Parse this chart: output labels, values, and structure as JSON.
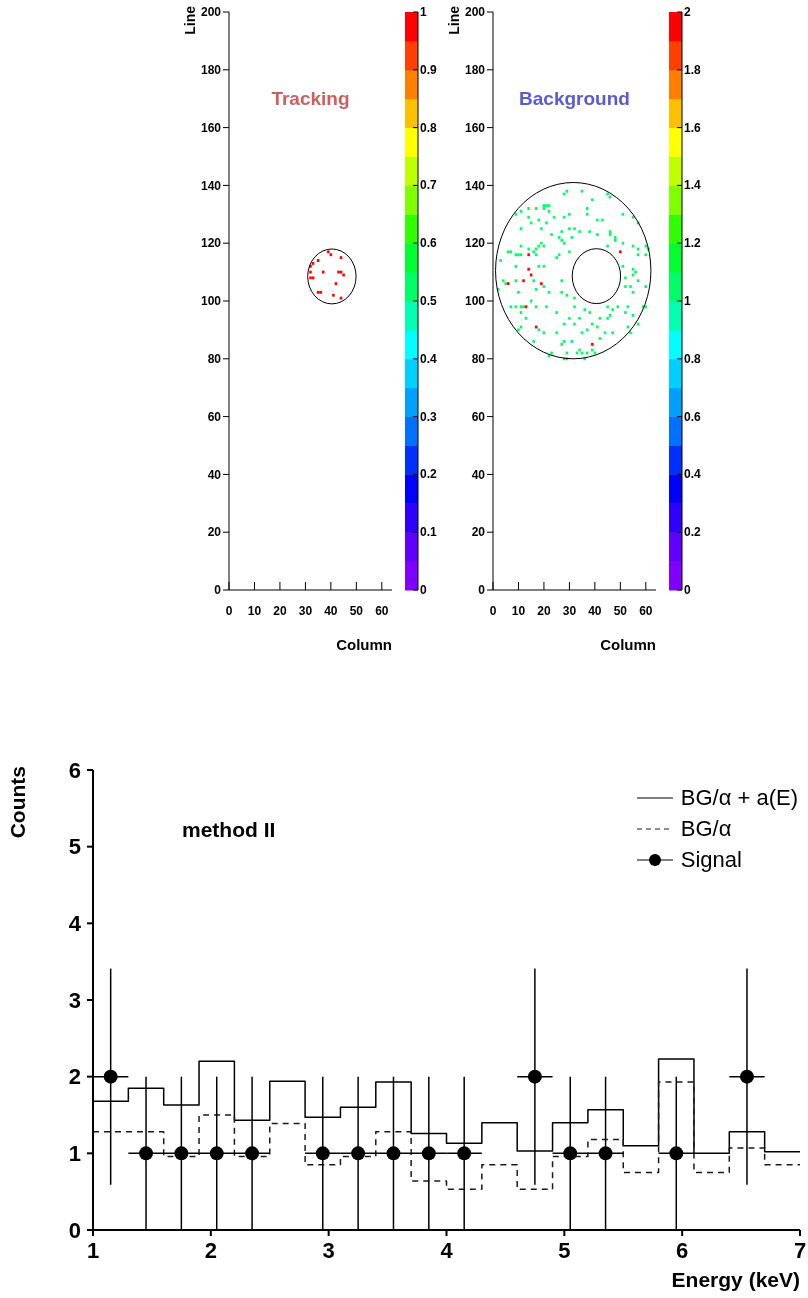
{
  "chart_data": [
    {
      "type": "scatter",
      "title": "Tracking",
      "xlabel": "Column",
      "ylabel": "Line",
      "marker": "square",
      "xlim": [
        0,
        64
      ],
      "xticks": [
        0,
        10,
        20,
        30,
        40,
        50,
        60
      ],
      "ylim": [
        0,
        200
      ],
      "yticks": [
        0,
        20,
        40,
        60,
        80,
        100,
        120,
        140,
        160,
        180,
        200
      ],
      "clim": [
        0,
        1
      ],
      "cticks": [
        0,
        0.1,
        0.2,
        0.3,
        0.4,
        0.5,
        0.6,
        0.7,
        0.8,
        0.9,
        1
      ],
      "x": [
        39,
        40,
        44,
        35,
        33,
        32,
        37,
        43,
        44,
        45,
        32,
        33,
        32,
        42,
        36,
        35,
        41,
        44
      ],
      "values": [
        117,
        116,
        115,
        114,
        113,
        112,
        110,
        110,
        110,
        109,
        110,
        108,
        108,
        106,
        103,
        103,
        102,
        101
      ],
      "cvalues": [
        1,
        1,
        1,
        1,
        1,
        1,
        1,
        1,
        1,
        1,
        1,
        1,
        1,
        1,
        1,
        1,
        1,
        1
      ]
    },
    {
      "type": "scatter",
      "title": "Background",
      "xlabel": "Column",
      "ylabel": "Line",
      "marker": "square",
      "xlim": [
        0,
        64
      ],
      "xticks": [
        0,
        10,
        20,
        30,
        40,
        50,
        60
      ],
      "ylim": [
        0,
        200
      ],
      "yticks": [
        0,
        20,
        40,
        60,
        80,
        100,
        120,
        140,
        160,
        180,
        200
      ],
      "clim": [
        0,
        2
      ],
      "cticks": [
        0,
        0.2,
        0.4,
        0.6,
        0.8,
        1,
        1.2,
        1.4,
        1.6,
        1.8,
        2
      ],
      "x": [
        29,
        35,
        45,
        46,
        39,
        28,
        20,
        21,
        22,
        11,
        9,
        14,
        17,
        20,
        22,
        30,
        37,
        37,
        41,
        43,
        51,
        55,
        57,
        14,
        15,
        18,
        21,
        24,
        28,
        11,
        19,
        23,
        27,
        30,
        32,
        34,
        38,
        46,
        46,
        48,
        48,
        26,
        27,
        28,
        31,
        41,
        51,
        55,
        60,
        57,
        61,
        57,
        60,
        19,
        18,
        20,
        17,
        16,
        14,
        11,
        6,
        7,
        9,
        10,
        11,
        17,
        30,
        25,
        26,
        45,
        3,
        9,
        18,
        20,
        51,
        55,
        56,
        55,
        52,
        57,
        60,
        4,
        5,
        2,
        9,
        16,
        17,
        20,
        27,
        10,
        15,
        22,
        27,
        29,
        32,
        52,
        54,
        55,
        7,
        9,
        11,
        12,
        17,
        21,
        25,
        32,
        36,
        45,
        47,
        49,
        53,
        52,
        55,
        57,
        59,
        60,
        11,
        13,
        38,
        30,
        34,
        28,
        32,
        39,
        41,
        42,
        45,
        46,
        11,
        10,
        18,
        20,
        25,
        35,
        37,
        42,
        44,
        47,
        53,
        54,
        16,
        27,
        31,
        28,
        29,
        23,
        22,
        33,
        34,
        35,
        37,
        39,
        40,
        28,
        29,
        36,
        14,
        50,
        14,
        15,
        12,
        6,
        19,
        13,
        17,
        39
      ],
      "values": [
        138,
        138,
        137,
        136,
        135,
        137,
        133,
        133,
        133,
        131,
        130,
        132,
        132,
        132,
        131,
        130,
        132,
        130,
        128,
        128,
        130,
        129,
        127,
        129,
        127,
        128,
        127,
        129,
        129,
        125,
        125,
        123,
        124,
        125,
        125,
        124,
        124,
        124,
        123,
        122,
        121,
        122,
        121,
        120,
        122,
        123,
        120,
        119,
        119,
        118,
        118,
        116,
        116,
        120,
        119,
        119,
        118,
        117,
        118,
        119,
        117,
        117,
        116,
        116,
        116,
        116,
        117,
        115,
        116,
        119,
        114,
        112,
        112,
        112,
        112,
        111,
        110,
        109,
        108,
        107,
        105,
        107,
        106,
        104,
        107,
        107,
        104,
        105,
        107,
        103,
        100,
        103,
        103,
        102,
        101,
        105,
        105,
        103,
        98,
        98,
        98,
        98,
        98,
        98,
        96,
        98,
        97,
        98,
        97,
        98,
        98,
        96,
        95,
        92,
        98,
        98,
        96,
        94,
        96,
        94,
        94,
        92,
        92,
        92,
        91,
        94,
        94,
        95,
        91,
        90,
        90,
        89,
        89,
        89,
        90,
        87,
        89,
        89,
        91,
        89,
        86,
        85,
        86,
        86,
        82,
        82,
        81,
        82,
        83,
        82,
        82,
        83,
        82,
        80,
        80,
        80,
        116,
        117,
        111,
        109,
        107,
        106,
        106,
        98,
        91,
        85
      ],
      "cvalues": [
        1,
        1,
        1,
        1,
        1,
        1,
        1,
        1,
        1,
        1,
        1,
        1,
        1,
        1,
        1,
        1,
        1,
        1,
        1,
        1,
        1,
        1,
        1,
        1,
        1,
        1,
        1,
        1,
        1,
        1,
        1,
        1,
        1,
        1,
        1,
        1,
        1,
        1,
        1,
        1,
        1,
        1,
        1,
        1,
        1,
        1,
        1,
        1,
        1,
        1,
        1,
        1,
        1,
        1,
        1,
        1,
        1,
        1,
        1,
        1,
        1,
        1,
        1,
        1,
        1,
        1,
        1,
        1,
        1,
        1,
        1,
        1,
        1,
        1,
        1,
        1,
        1,
        1,
        1,
        1,
        1,
        1,
        1,
        1,
        1,
        1,
        1,
        1,
        1,
        1,
        1,
        1,
        1,
        1,
        1,
        1,
        1,
        1,
        1,
        1,
        1,
        1,
        1,
        1,
        1,
        1,
        1,
        1,
        1,
        1,
        1,
        1,
        1,
        1,
        1,
        1,
        1,
        1,
        1,
        1,
        1,
        1,
        1,
        1,
        1,
        1,
        1,
        1,
        1,
        1,
        1,
        1,
        1,
        1,
        1,
        1,
        1,
        1,
        1,
        1,
        1,
        1,
        1,
        1,
        1,
        1,
        1,
        1,
        1,
        1,
        1,
        1,
        1,
        1,
        1,
        1,
        2,
        2,
        2,
        2,
        2,
        2,
        2,
        2,
        2,
        2
      ]
    },
    {
      "type": "histogram",
      "xlabel": "Energy (keV)",
      "ylabel": "Counts",
      "annotations": [
        "method II"
      ],
      "legend": "top right",
      "xlim": [
        1,
        7
      ],
      "xticks": [
        1,
        2,
        3,
        4,
        5,
        6,
        7
      ],
      "ylim": [
        0,
        6
      ],
      "yticks": [
        0,
        1,
        2,
        3,
        4,
        5,
        6
      ],
      "bins": [
        1,
        1.3,
        1.6,
        1.9,
        2.2,
        2.5,
        2.8,
        3.1,
        3.4,
        3.7,
        4,
        4.3,
        4.6,
        4.9,
        5.2,
        5.5,
        5.8,
        6.1,
        6.4,
        6.7,
        7
      ],
      "series": [
        {
          "name": "BG/α + a(E)",
          "color": "#000000",
          "line_style": "solid",
          "values": [
            1.68,
            1.85,
            1.63,
            2.2,
            1.43,
            1.94,
            1.47,
            1.6,
            1.93,
            1.26,
            1.13,
            1.4,
            1.03,
            1.4,
            1.57,
            1.1,
            2.23,
            1,
            1.28,
            1.02
          ]
        },
        {
          "name": "BG/α",
          "color": "#1a1a1a",
          "line_style": "dashed",
          "values": [
            1.28,
            1.28,
            0.96,
            1.5,
            0.96,
            1.39,
            0.85,
            0.96,
            1.28,
            0.64,
            0.53,
            0.85,
            0.53,
            0.96,
            1.18,
            0.75,
            1.93,
            0.75,
            1.07,
            0.85
          ]
        },
        {
          "name": "Signal",
          "type": "scatter",
          "marker": "circle",
          "color": "#000000",
          "x": [
            1.15,
            1.45,
            1.75,
            2.05,
            2.35,
            2.95,
            3.25,
            3.55,
            3.85,
            4.15,
            4.75,
            5.05,
            5.35,
            5.95,
            6.55
          ],
          "values": [
            2,
            1,
            1,
            1,
            1,
            1,
            1,
            1,
            1,
            1,
            2,
            1,
            1,
            1,
            2
          ],
          "errors": [
            1.41,
            1,
            1,
            1,
            1,
            1,
            1,
            1,
            1,
            1,
            1.41,
            1,
            1,
            1,
            1.41
          ],
          "xerrors": [
            0.15,
            0.15,
            0.15,
            0.15,
            0.15,
            0.15,
            0.15,
            0.15,
            0.15,
            0.15,
            0.15,
            0.15,
            0.15,
            0.15,
            0.15
          ]
        }
      ]
    }
  ]
}
